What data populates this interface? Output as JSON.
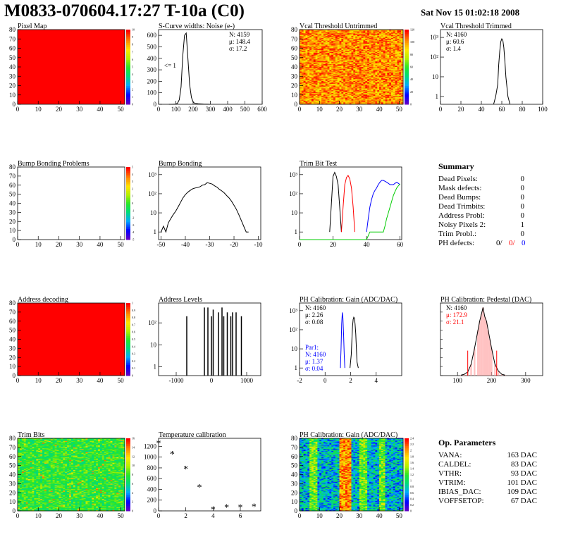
{
  "header": {
    "title": "M0833-070604.17:27 T-10a (C0)",
    "date": "Sat Nov 15 01:02:18 2008"
  },
  "colors": {
    "red": "#ff0000",
    "blue": "#0000ff",
    "green": "#00cc00",
    "black": "#000000",
    "pink": "#ff9999"
  },
  "chart_data": [
    {
      "id": "p1",
      "type": "heatmap",
      "title": "Pixel Map",
      "xticks": [
        "0",
        "10",
        "20",
        "30",
        "40",
        "50"
      ],
      "yticks": [
        "0",
        "10",
        "20",
        "30",
        "40",
        "50",
        "60",
        "70",
        "80"
      ],
      "xlim": [
        0,
        52
      ],
      "ylim": [
        0,
        80
      ],
      "fill": "uniform-max",
      "zticks": [
        "0",
        "1",
        "2",
        "3",
        "4",
        "5",
        "6",
        "7",
        "8",
        "9",
        "10"
      ]
    },
    {
      "id": "p2",
      "type": "line",
      "title": "S-Curve widths: Noise (e-)",
      "xticks": [
        "0",
        "100",
        "200",
        "300",
        "400",
        "500",
        "600"
      ],
      "yticks": [
        "0",
        "100",
        "200",
        "300",
        "400",
        "500",
        "600"
      ],
      "xlim": [
        0,
        600
      ],
      "ylim": [
        0,
        650
      ],
      "annotation": "<= 1",
      "stats": [
        "N: 4159",
        "μ: 148.4",
        "σ: 17.2"
      ],
      "x": [
        60,
        80,
        100,
        110,
        120,
        130,
        140,
        150,
        160,
        170,
        180,
        190,
        200,
        210,
        230,
        260,
        300
      ],
      "y": [
        0,
        0,
        2,
        10,
        40,
        150,
        420,
        600,
        620,
        400,
        170,
        60,
        20,
        8,
        4,
        2,
        0
      ]
    },
    {
      "id": "p3",
      "type": "heatmap",
      "title": "Vcal Threshold Untrimmed",
      "xticks": [
        "0",
        "10",
        "20",
        "30",
        "40",
        "50"
      ],
      "yticks": [
        "0",
        "10",
        "20",
        "30",
        "40",
        "50",
        "60",
        "70",
        "80"
      ],
      "xlim": [
        0,
        52
      ],
      "ylim": [
        0,
        80
      ],
      "fill": "noise-yellow-orange",
      "zticks": [
        "0",
        "20",
        "40",
        "60",
        "80",
        "100",
        "120"
      ]
    },
    {
      "id": "p4",
      "type": "line",
      "logy": true,
      "title": "Vcal Threshold Trimmed",
      "xticks": [
        "0",
        "20",
        "40",
        "60",
        "80",
        "100"
      ],
      "yticks": [
        "1",
        "10",
        "10²",
        "10³"
      ],
      "xlim": [
        0,
        100
      ],
      "ylim": [
        0.4,
        2500
      ],
      "stats": [
        "N: 4160",
        "μ: 60.6",
        "σ: 1.4"
      ],
      "x": [
        52,
        54,
        56,
        57,
        58,
        59,
        60,
        61,
        62,
        63,
        64,
        65,
        66,
        68
      ],
      "y": [
        0,
        1,
        4,
        40,
        200,
        600,
        850,
        700,
        300,
        60,
        10,
        3,
        1,
        0
      ]
    },
    {
      "id": "p5",
      "type": "heatmap",
      "title": "Bump Bonding Problems",
      "xticks": [
        "0",
        "10",
        "20",
        "30",
        "40",
        "50"
      ],
      "yticks": [
        "0",
        "10",
        "20",
        "30",
        "40",
        "50",
        "60",
        "70",
        "80"
      ],
      "xlim": [
        0,
        52
      ],
      "ylim": [
        0,
        80
      ],
      "fill": "empty",
      "zticks": [
        "-5",
        "-4",
        "-3",
        "-2",
        "-1",
        "0",
        "1",
        "2",
        "3",
        "4",
        "5"
      ]
    },
    {
      "id": "p6",
      "type": "line",
      "logy": true,
      "title": "Bump Bonding",
      "xticks": [
        "-50",
        "-40",
        "-30",
        "-20",
        "-10"
      ],
      "yticks": [
        "1",
        "10",
        "10²",
        "10³"
      ],
      "xlim": [
        -51,
        -9
      ],
      "ylim": [
        0.4,
        2500
      ],
      "x": [
        -50,
        -49,
        -48,
        -47,
        -46,
        -45,
        -44,
        -43,
        -42,
        -41,
        -40,
        -39,
        -38,
        -37,
        -36,
        -35,
        -34,
        -33,
        -32,
        -31,
        -30,
        -29,
        -28,
        -27,
        -26,
        -25,
        -24,
        -23,
        -22,
        -21,
        -20,
        -19,
        -18,
        -17,
        -16,
        -15,
        -14
      ],
      "y": [
        1,
        2,
        1,
        3,
        5,
        8,
        12,
        20,
        35,
        60,
        90,
        120,
        150,
        180,
        200,
        210,
        230,
        280,
        300,
        380,
        350,
        320,
        260,
        220,
        170,
        140,
        110,
        80,
        60,
        40,
        25,
        15,
        8,
        4,
        2,
        1,
        1
      ]
    },
    {
      "id": "p7",
      "type": "line",
      "logy": true,
      "title": "Trim Bit Test",
      "xticks": [
        "0",
        "20",
        "40",
        "60"
      ],
      "yticks": [
        "1",
        "10",
        "10²",
        "10³"
      ],
      "xlim": [
        0,
        61
      ],
      "ylim": [
        0.4,
        2500
      ],
      "series": [
        {
          "color": "black",
          "x": [
            18,
            19,
            20,
            21,
            22,
            23,
            24,
            25
          ],
          "y": [
            1,
            30,
            800,
            1300,
            800,
            300,
            20,
            1
          ]
        },
        {
          "color": "red",
          "x": [
            25,
            26,
            27,
            28,
            29,
            30,
            31,
            32,
            33
          ],
          "y": [
            1,
            20,
            300,
            700,
            900,
            600,
            200,
            20,
            1
          ]
        },
        {
          "color": "blue",
          "x": [
            40,
            41,
            42,
            43,
            44,
            45,
            46,
            47,
            48,
            49,
            50,
            51,
            52,
            53,
            54,
            55,
            56,
            57,
            58,
            59,
            60
          ],
          "y": [
            1,
            5,
            20,
            50,
            100,
            150,
            200,
            300,
            400,
            500,
            500,
            450,
            400,
            350,
            300,
            300,
            300,
            350,
            400,
            350,
            300
          ]
        },
        {
          "color": "green",
          "x": [
            0,
            40,
            42,
            44,
            46,
            48,
            50,
            51,
            52,
            53,
            54,
            55,
            56,
            57,
            58,
            59,
            60
          ],
          "y": [
            0.4,
            0.4,
            1,
            1,
            1,
            1,
            1,
            2,
            5,
            10,
            20,
            40,
            80,
            130,
            200,
            260,
            320
          ]
        }
      ]
    },
    {
      "id": "p9",
      "type": "heatmap",
      "title": "Address decoding",
      "xticks": [
        "0",
        "10",
        "20",
        "30",
        "40",
        "50"
      ],
      "yticks": [
        "0",
        "10",
        "20",
        "30",
        "40",
        "50",
        "60",
        "70",
        "80"
      ],
      "xlim": [
        0,
        52
      ],
      "ylim": [
        0,
        80
      ],
      "fill": "uniform-max",
      "zticks": [
        "0",
        "0.1",
        "0.2",
        "0.3",
        "0.4",
        "0.5",
        "0.6",
        "0.7",
        "0.8",
        "0.9",
        "1"
      ]
    },
    {
      "id": "p10",
      "type": "bar",
      "logy": true,
      "title": "Address Levels",
      "xticks": [
        "-1000",
        "0",
        "1000"
      ],
      "yticks": [
        "1",
        "10",
        "10²"
      ],
      "xlim": [
        -1500,
        1400
      ],
      "ylim": [
        0.4,
        800
      ],
      "x": [
        -700,
        -200,
        -100,
        0,
        50,
        200,
        300,
        350,
        450,
        550,
        600,
        700,
        850
      ],
      "y": [
        200,
        500,
        500,
        200,
        400,
        300,
        500,
        200,
        300,
        200,
        300,
        300,
        200
      ]
    },
    {
      "id": "p11",
      "type": "line",
      "logy": true,
      "title": "PH Calibration: Gain (ADC/DAC)",
      "xticks": [
        "-2",
        "0",
        "2",
        "4"
      ],
      "yticks": [
        "1",
        "10",
        "10²",
        "10³"
      ],
      "xlim": [
        -2,
        6
      ],
      "ylim": [
        0.4,
        2500
      ],
      "stats": [
        "N: 4160",
        "μ: 2.26",
        "σ: 0.08"
      ],
      "stats2": [
        "Par1:",
        "N: 4160",
        "μ: 1.37",
        "σ: 0.04"
      ],
      "series": [
        {
          "color": "blue",
          "x": [
            1.2,
            1.25,
            1.3,
            1.35,
            1.4,
            1.45,
            1.5,
            1.55
          ],
          "y": [
            1,
            10,
            200,
            800,
            400,
            60,
            5,
            1
          ]
        },
        {
          "color": "black",
          "x": [
            1.95,
            2.05,
            2.1,
            2.15,
            2.2,
            2.25,
            2.3,
            2.35,
            2.4,
            2.45,
            2.5,
            2.6
          ],
          "y": [
            1,
            5,
            30,
            150,
            350,
            450,
            400,
            200,
            60,
            10,
            2,
            1
          ]
        }
      ]
    },
    {
      "id": "p12",
      "type": "line",
      "title": "PH Calibration: Pedestal (DAC)",
      "xticks": [
        "100",
        "200",
        "300"
      ],
      "xlim": [
        50,
        350
      ],
      "ylim": [
        0,
        160
      ],
      "stats": [
        "N: 4160",
        "μ: 172.9",
        "σ: 21.1"
      ],
      "x": [
        110,
        120,
        130,
        140,
        150,
        160,
        165,
        170,
        175,
        180,
        185,
        190,
        195,
        200,
        210,
        220,
        230,
        240
      ],
      "y": [
        1,
        3,
        8,
        25,
        60,
        100,
        120,
        135,
        150,
        130,
        120,
        100,
        80,
        60,
        25,
        10,
        3,
        1
      ]
    },
    {
      "id": "p13",
      "type": "heatmap",
      "title": "Trim Bits",
      "xticks": [
        "0",
        "10",
        "20",
        "30",
        "40",
        "50"
      ],
      "yticks": [
        "0",
        "10",
        "20",
        "30",
        "40",
        "50",
        "60",
        "70",
        "80"
      ],
      "xlim": [
        0,
        52
      ],
      "ylim": [
        0,
        80
      ],
      "fill": "noise-green",
      "zticks": [
        "0",
        "2",
        "4",
        "6",
        "8",
        "10",
        "12",
        "14",
        "16"
      ]
    },
    {
      "id": "p14",
      "type": "scatter",
      "title": "Temperature calibration",
      "xticks": [
        "0",
        "2",
        "4",
        "6"
      ],
      "yticks": [
        "0",
        "200",
        "400",
        "600",
        "800",
        "1000",
        "1200"
      ],
      "xlim": [
        0,
        7.5
      ],
      "ylim": [
        0,
        1350
      ],
      "x": [
        0,
        1,
        2,
        3,
        4,
        5,
        6,
        7
      ],
      "y": [
        1250,
        1050,
        775,
        430,
        20,
        60,
        60,
        70
      ]
    },
    {
      "id": "p15",
      "type": "heatmap",
      "title": "PH Calibration: Gain (ADC/DAC)",
      "xticks": [
        "0",
        "10",
        "20",
        "30",
        "40",
        "50"
      ],
      "yticks": [
        "0",
        "10",
        "20",
        "30",
        "40",
        "50",
        "60",
        "70",
        "80"
      ],
      "xlim": [
        0,
        52
      ],
      "ylim": [
        0,
        80
      ],
      "fill": "noise-columns",
      "zticks": [
        "0",
        "0.2",
        "0.4",
        "0.6",
        "0.8",
        "1",
        "1.2",
        "1.4",
        "1.6",
        "1.8",
        "2",
        "2.2",
        "2.4"
      ]
    }
  ],
  "summary": {
    "title": "Summary",
    "rows": [
      {
        "label": "Dead Pixels:",
        "value": "0"
      },
      {
        "label": "Mask defects:",
        "value": "0"
      },
      {
        "label": "Dead Bumps:",
        "value": "0"
      },
      {
        "label": "Dead Trimbits:",
        "value": "0"
      },
      {
        "label": "Address Probl:",
        "value": "0"
      },
      {
        "label": "Noisy Pixels 2:",
        "value": "1"
      },
      {
        "label": "Trim Probl.:",
        "value": "0"
      }
    ],
    "ph": {
      "label": "PH defects:",
      "v1": "0/",
      "v2": "0/",
      "v3": "0"
    }
  },
  "params": {
    "title": "Op. Parameters",
    "rows": [
      {
        "label": "VANA:",
        "value": "163 DAC"
      },
      {
        "label": "CALDEL:",
        "value": "83 DAC"
      },
      {
        "label": "VTHR:",
        "value": "93 DAC"
      },
      {
        "label": "VTRIM:",
        "value": "101 DAC"
      },
      {
        "label": "IBIAS_DAC:",
        "value": "109 DAC"
      },
      {
        "label": "VOFFSETOP:",
        "value": "67 DAC"
      }
    ]
  }
}
